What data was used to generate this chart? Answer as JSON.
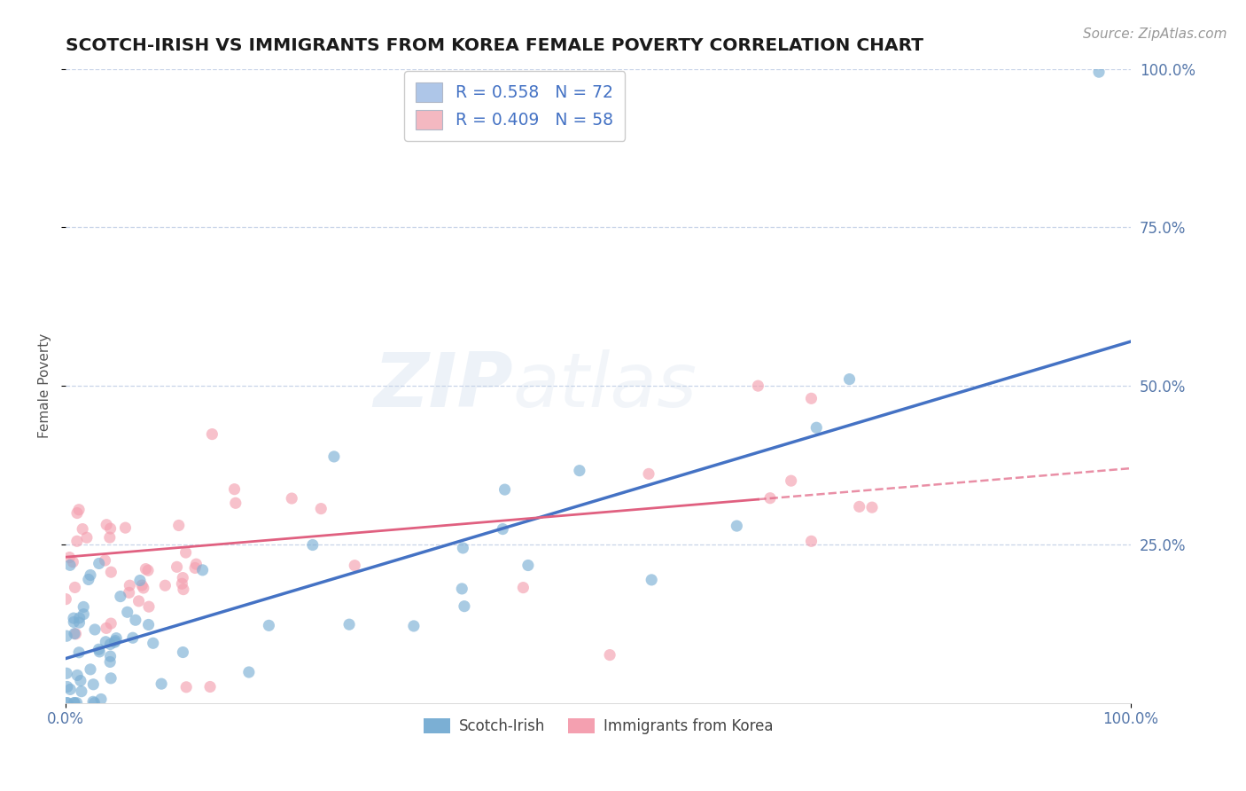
{
  "title": "SCOTCH-IRISH VS IMMIGRANTS FROM KOREA FEMALE POVERTY CORRELATION CHART",
  "source_text": "Source: ZipAtlas.com",
  "ylabel": "Female Poverty",
  "watermark_zip": "ZIP",
  "watermark_atlas": "atlas",
  "xlim": [
    0.0,
    100.0
  ],
  "ylim": [
    0.0,
    100.0
  ],
  "y_ticks": [
    25.0,
    50.0,
    75.0,
    100.0
  ],
  "y_tick_labels": [
    "25.0%",
    "50.0%",
    "75.0%",
    "100.0%"
  ],
  "legend_entries": [
    {
      "label": "R = 0.558   N = 72",
      "color": "#aec6e8"
    },
    {
      "label": "R = 0.409   N = 58",
      "color": "#f4b8c1"
    }
  ],
  "legend_bottom": [
    "Scotch-Irish",
    "Immigrants from Korea"
  ],
  "scotch_irish_color": "#7bafd4",
  "korea_color": "#f4a0b0",
  "scotch_irish_line_color": "#4472c4",
  "korea_line_color": "#e06080",
  "r_scotch": 0.558,
  "n_scotch": 72,
  "r_korea": 0.409,
  "n_korea": 58,
  "blue_line_x0": 0.0,
  "blue_line_y0": 7.0,
  "blue_line_x1": 100.0,
  "blue_line_y1": 57.0,
  "pink_line_x0": 0.0,
  "pink_line_y0": 23.0,
  "pink_line_x1": 100.0,
  "pink_line_y1": 37.0,
  "pink_solid_end_x": 65.0,
  "background_color": "#ffffff",
  "grid_color": "#c8d4e8",
  "title_color": "#1a1a1a",
  "axis_label_color": "#555555",
  "tick_label_color": "#5577aa",
  "source_color": "#999999",
  "legend_label_color": "#4472c4"
}
